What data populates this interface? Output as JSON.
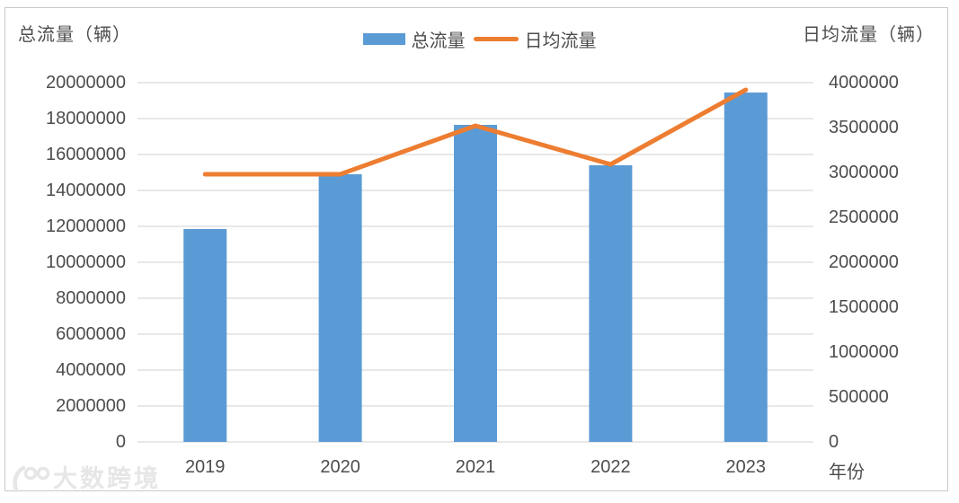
{
  "chart_data": {
    "type": "bar",
    "combo": "bar+line dual axis",
    "categories": [
      "2019",
      "2020",
      "2021",
      "2022",
      "2023"
    ],
    "series": [
      {
        "name": "总流量",
        "type": "bar",
        "axis": "left",
        "color": "#5B9BD5",
        "values": [
          11850000,
          14900000,
          17650000,
          15400000,
          19450000
        ]
      },
      {
        "name": "日均流量",
        "type": "line",
        "axis": "right",
        "color": "#ED7D31",
        "values": [
          2980000,
          2980000,
          3520000,
          3090000,
          3920000
        ]
      }
    ],
    "left_axis": {
      "title": "总流量（辆）",
      "min": 0,
      "max": 20000000,
      "step": 2000000,
      "ticks": [
        0,
        2000000,
        4000000,
        6000000,
        8000000,
        10000000,
        12000000,
        14000000,
        16000000,
        18000000,
        20000000
      ]
    },
    "right_axis": {
      "title": "日均流量（辆）",
      "min": 0,
      "max": 4000000,
      "step": 500000,
      "ticks": [
        0,
        500000,
        1000000,
        1500000,
        2000000,
        2500000,
        3000000,
        3500000,
        4000000
      ]
    },
    "x_axis": {
      "title": "年份"
    },
    "grid": "horizontal gridlines on, left-axis intervals",
    "legend_position": "top-center"
  },
  "legend": {
    "items": [
      {
        "label": "总流量",
        "swatch": "bar-swatch"
      },
      {
        "label": "日均流量",
        "swatch": "line-swatch"
      }
    ]
  },
  "watermark": {
    "logo": "100-logo",
    "text": "大数跨境"
  },
  "colors": {
    "bar": "#5B9BD5",
    "line": "#ED7D31",
    "grid": "#d9d9d9",
    "axis_text": "#4d4d4d",
    "frame_border": "#c9c9c9",
    "watermark": "#e6e6e6",
    "background": "#ffffff"
  }
}
